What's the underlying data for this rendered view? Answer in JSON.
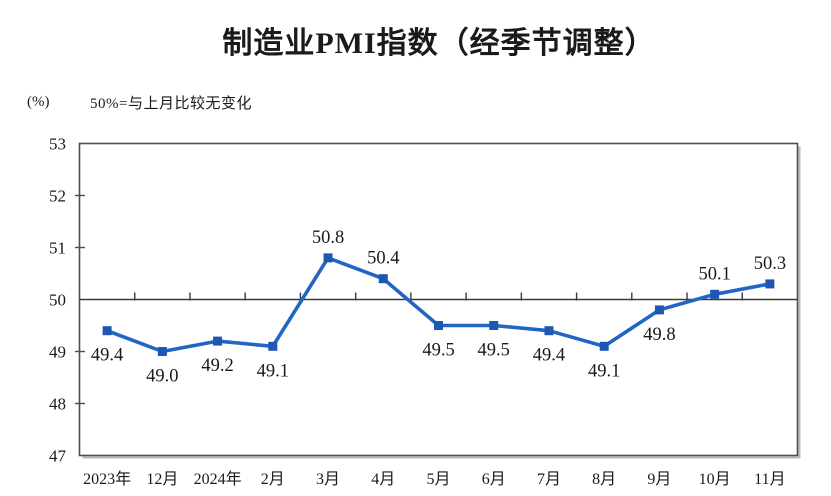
{
  "page": {
    "background": "#ffffff"
  },
  "chart_data": {
    "type": "line",
    "title": "制造业PMI指数（经季节调整）",
    "unit_label": "(%)",
    "note": "50%=与上月比较无变化",
    "categories": [
      "2023年",
      "12月",
      "2024年",
      "2月",
      "3月",
      "4月",
      "5月",
      "6月",
      "7月",
      "8月",
      "9月",
      "10月",
      "11月"
    ],
    "series": [
      {
        "name": "制造业PMI指数",
        "values": [
          49.4,
          49.0,
          49.2,
          49.1,
          50.8,
          50.4,
          49.5,
          49.5,
          49.4,
          49.1,
          49.8,
          50.1,
          50.3
        ]
      }
    ],
    "data_labels": [
      "49.4",
      "49.0",
      "49.2",
      "49.1",
      "50.8",
      "50.4",
      "49.5",
      "49.5",
      "49.4",
      "49.1",
      "49.8",
      "50.1",
      "50.3"
    ],
    "ylim": [
      47,
      53
    ],
    "ytick_step": 1,
    "ytick_labels": [
      "47",
      "48",
      "49",
      "50",
      "51",
      "52",
      "53"
    ],
    "reference_value": 50,
    "grid": "off",
    "legend": "none",
    "colors": {
      "line": "#2265c4",
      "marker": "#1d57b4",
      "axis": "#4d4d4d",
      "reference_line": "#3a3a3a",
      "shadow": "#b8b8b8",
      "text": "#1a1a1a"
    }
  }
}
